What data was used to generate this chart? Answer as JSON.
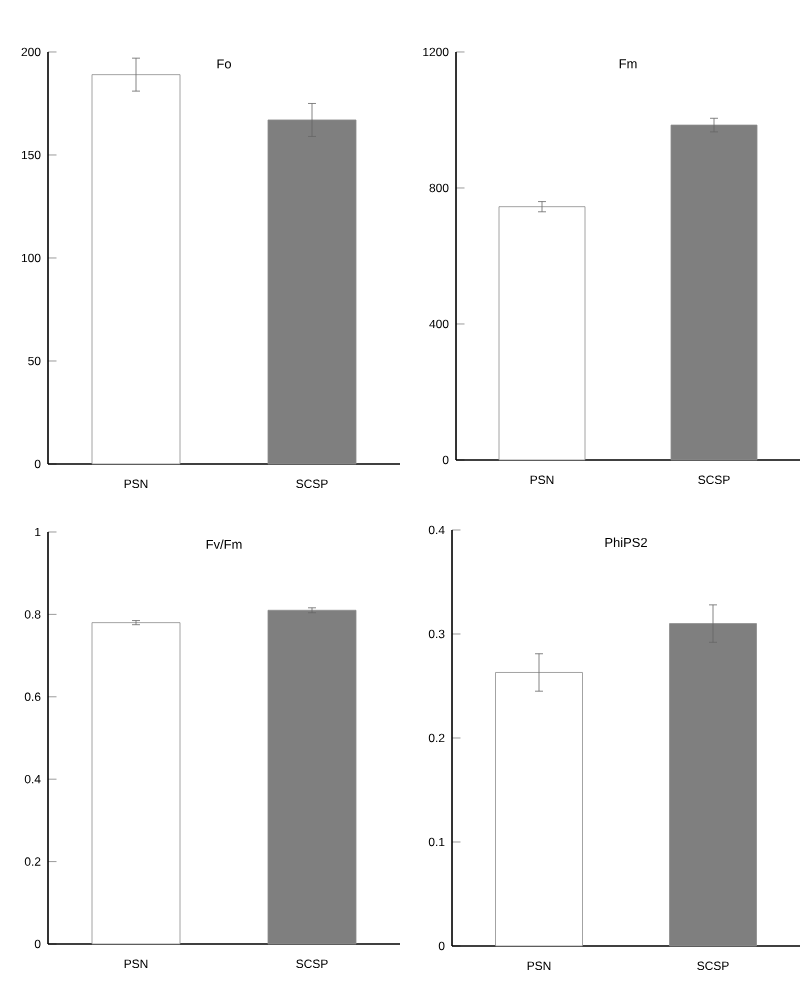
{
  "chart_data": [
    {
      "type": "bar",
      "title": "Fo",
      "categories": [
        "PSN",
        "SCSP"
      ],
      "values": [
        189,
        167
      ],
      "errors": [
        8,
        8
      ],
      "colors": [
        "#ffffff",
        "#7f7f7f"
      ],
      "ylim": [
        0,
        200
      ],
      "yticks": [
        0,
        50,
        100,
        150,
        200
      ]
    },
    {
      "type": "bar",
      "title": "Fm",
      "categories": [
        "PSN",
        "SCSP"
      ],
      "values": [
        745,
        985
      ],
      "errors": [
        15,
        20
      ],
      "colors": [
        "#ffffff",
        "#7f7f7f"
      ],
      "ylim": [
        0,
        1200
      ],
      "yticks": [
        0,
        400,
        800,
        1200
      ]
    },
    {
      "type": "bar",
      "title": "Fv/Fm",
      "categories": [
        "PSN",
        "SCSP"
      ],
      "values": [
        0.78,
        0.81
      ],
      "errors": [
        0.005,
        0.006
      ],
      "colors": [
        "#ffffff",
        "#7f7f7f"
      ],
      "ylim": [
        0,
        1
      ],
      "yticks": [
        0,
        0.2,
        0.4,
        0.6,
        0.8,
        1
      ]
    },
    {
      "type": "bar",
      "title": "PhiPS2",
      "categories": [
        "PSN",
        "SCSP"
      ],
      "values": [
        0.263,
        0.31
      ],
      "errors": [
        0.018,
        0.018
      ],
      "colors": [
        "#ffffff",
        "#7f7f7f"
      ],
      "ylim": [
        0,
        0.4
      ],
      "yticks": [
        0,
        0.1,
        0.2,
        0.3,
        0.4
      ]
    }
  ]
}
